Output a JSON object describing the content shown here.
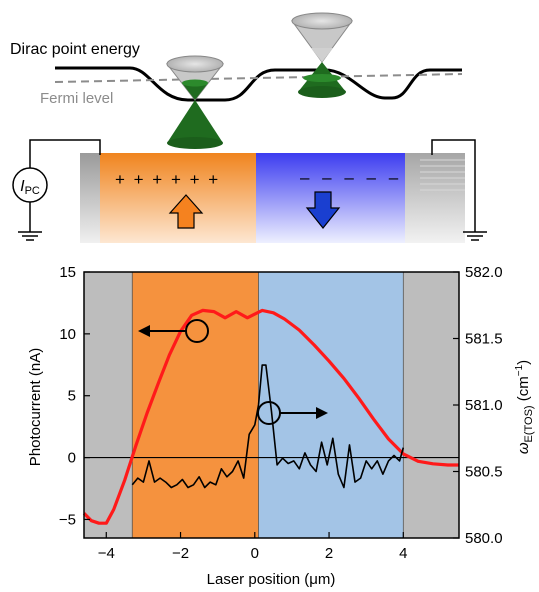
{
  "schematic": {
    "dirac_label": "Dirac point energy",
    "fermi_label": "Fermi level",
    "ammeter_main": "I",
    "ammeter_sub": "PC",
    "plus_signs": "+ + + + + +",
    "minus_signs": "– – – – –",
    "colors": {
      "p_region": "#f0841e",
      "n_region": "#3c3cf0",
      "contact": "#b4b4b4",
      "cone_fill": "#1f6b1f",
      "cone_empty": "#c8c8c8",
      "arrow_up": "#f5821f",
      "arrow_down": "#1a3fd0",
      "fermi_line": "#8c8c8c"
    }
  },
  "chart_data": {
    "type": "line",
    "xlabel": "Laser position (μm)",
    "ylabel": "Photocurrent (nA)",
    "y2label_main": "ω",
    "y2label_sub": "E(TOS)",
    "y2label_unit": " (cm",
    "y2label_sup": "−1",
    "y2label_close": ")",
    "xlim": [
      -4.6,
      5.5
    ],
    "ylim": [
      -6.5,
      15
    ],
    "y2lim": [
      580.0,
      582.0
    ],
    "xticks": [
      -4,
      -2,
      0,
      2,
      4
    ],
    "xtick_labels": [
      "−4",
      "−2",
      "0",
      "2",
      "4"
    ],
    "yticks": [
      -5,
      0,
      5,
      10,
      15
    ],
    "ytick_labels": [
      "−5",
      "0",
      "5",
      "10",
      "15"
    ],
    "y2ticks": [
      580.0,
      580.5,
      581.0,
      581.5,
      582.0
    ],
    "y2tick_labels": [
      "580.0",
      "580.5",
      "581.0",
      "581.5",
      "582.0"
    ],
    "regions": [
      {
        "from": -4.6,
        "to": -3.3,
        "color": "#bdbdbd"
      },
      {
        "from": -3.3,
        "to": 0.1,
        "color": "#f5923e"
      },
      {
        "from": 0.1,
        "to": 4.0,
        "color": "#a3c4e6"
      },
      {
        "from": 4.0,
        "to": 5.5,
        "color": "#bdbdbd"
      }
    ],
    "series": [
      {
        "color": "#ff1a1a",
        "axis": "left",
        "x": [
          -4.6,
          -4.4,
          -4.2,
          -4.0,
          -3.8,
          -3.5,
          -3.2,
          -2.9,
          -2.6,
          -2.3,
          -2.0,
          -1.7,
          -1.4,
          -1.1,
          -0.8,
          -0.5,
          -0.2,
          0.0,
          0.2,
          0.5,
          0.8,
          1.2,
          1.6,
          2.0,
          2.4,
          2.8,
          3.2,
          3.6,
          4.0,
          4.4,
          4.8,
          5.2,
          5.5
        ],
        "y": [
          -4.5,
          -5.1,
          -5.3,
          -5.3,
          -4.2,
          -1.8,
          1.0,
          3.6,
          6.0,
          8.3,
          10.2,
          11.5,
          11.9,
          11.8,
          11.3,
          11.8,
          11.3,
          11.6,
          11.9,
          11.7,
          11.2,
          10.3,
          9.1,
          7.8,
          6.4,
          4.8,
          3.1,
          1.5,
          0.3,
          -0.3,
          -0.5,
          -0.6,
          -0.6
        ]
      },
      {
        "color": "#000000",
        "axis": "right",
        "x": [
          -3.3,
          -3.15,
          -3.0,
          -2.85,
          -2.7,
          -2.55,
          -2.4,
          -2.25,
          -2.1,
          -1.95,
          -1.8,
          -1.65,
          -1.5,
          -1.35,
          -1.2,
          -1.05,
          -0.9,
          -0.75,
          -0.6,
          -0.45,
          -0.3,
          -0.15,
          0.0,
          0.1,
          0.2,
          0.3,
          0.45,
          0.6,
          0.75,
          0.9,
          1.05,
          1.2,
          1.35,
          1.5,
          1.65,
          1.8,
          1.95,
          2.1,
          2.25,
          2.4,
          2.55,
          2.7,
          2.85,
          3.0,
          3.15,
          3.3,
          3.45,
          3.6,
          3.75,
          3.9,
          4.0
        ],
        "y": [
          580.4,
          580.45,
          580.42,
          580.58,
          580.42,
          580.45,
          580.42,
          580.38,
          580.4,
          580.44,
          580.38,
          580.4,
          580.46,
          580.38,
          580.42,
          580.4,
          580.52,
          580.46,
          580.5,
          580.58,
          580.45,
          580.78,
          580.85,
          581.0,
          581.3,
          581.3,
          580.95,
          580.55,
          580.6,
          580.56,
          580.58,
          580.52,
          580.64,
          580.55,
          580.5,
          580.72,
          580.55,
          580.75,
          580.48,
          580.38,
          580.7,
          580.42,
          580.45,
          580.58,
          580.52,
          580.58,
          580.48,
          580.58,
          580.62,
          580.58,
          580.68
        ]
      }
    ]
  }
}
